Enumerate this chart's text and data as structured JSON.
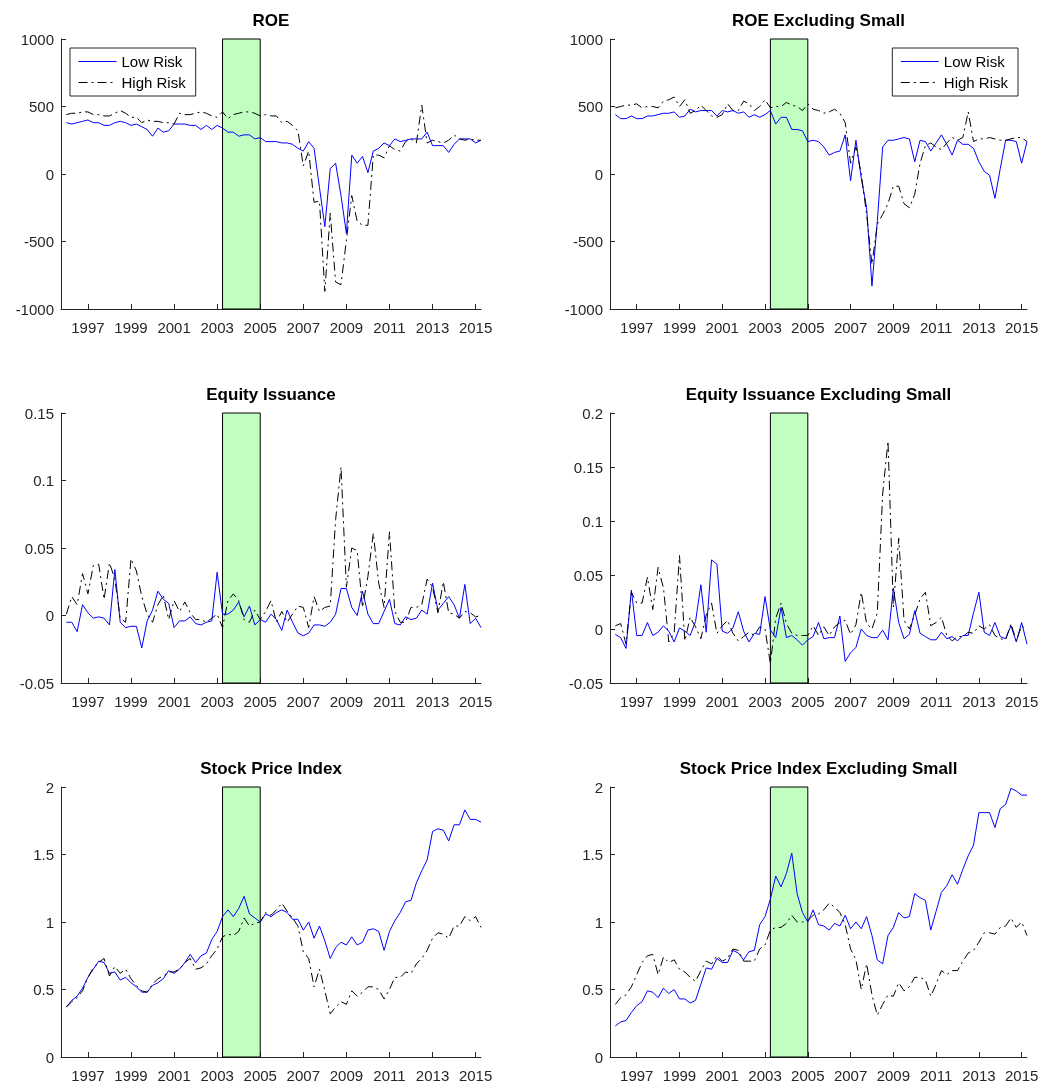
{
  "chart_data": [
    {
      "type": "line",
      "title": "ROE",
      "x": [
        1996,
        1996.25,
        1996.5,
        1996.75,
        1997,
        1997.25,
        1997.5,
        1997.75,
        1998,
        1998.25,
        1998.5,
        1998.75,
        1999,
        1999.25,
        1999.5,
        1999.75,
        2000,
        2000.25,
        2000.5,
        2000.75,
        2001,
        2001.25,
        2001.5,
        2001.75,
        2002,
        2002.25,
        2002.5,
        2002.75,
        2003,
        2003.25,
        2003.5,
        2003.75,
        2004,
        2004.25,
        2004.5,
        2004.75,
        2005,
        2005.25,
        2005.5,
        2005.75,
        2006,
        2006.25,
        2006.5,
        2006.75,
        2007,
        2007.25,
        2007.5,
        2007.75,
        2008,
        2008.25,
        2008.5,
        2008.75,
        2009,
        2009.25,
        2009.5,
        2009.75,
        2010,
        2010.25,
        2010.5,
        2010.75,
        2011,
        2011.25,
        2011.5,
        2011.75,
        2012,
        2012.25,
        2012.5,
        2012.75,
        2013,
        2013.25,
        2013.5,
        2013.75,
        2014,
        2014.25,
        2014.5,
        2014.75,
        2015,
        2015.25
      ],
      "xlim": [
        1995.75,
        2015.25
      ],
      "xticks": [
        1997,
        1999,
        2001,
        2003,
        2005,
        2007,
        2009,
        2011,
        2013,
        2015
      ],
      "ylim": [
        -1000,
        1000
      ],
      "yticks": [
        -1000,
        -500,
        0,
        500,
        1000
      ],
      "legend": "top left",
      "bands": [
        {
          "axis": "x",
          "from": 2003.25,
          "to": 2005,
          "color": "#c0ffc0"
        }
      ],
      "series": [
        {
          "name": "Low Risk",
          "color": "#0000ff",
          "line_style": "solid",
          "values": [
            380,
            370,
            380,
            390,
            400,
            380,
            380,
            360,
            360,
            380,
            390,
            380,
            360,
            370,
            350,
            330,
            280,
            340,
            310,
            320,
            370,
            370,
            370,
            360,
            360,
            330,
            360,
            330,
            360,
            340,
            310,
            310,
            280,
            290,
            290,
            260,
            270,
            240,
            240,
            240,
            230,
            230,
            220,
            190,
            170,
            240,
            190,
            -100,
            -390,
            40,
            80,
            -160,
            -440,
            140,
            80,
            130,
            10,
            170,
            190,
            230,
            210,
            260,
            240,
            250,
            260,
            260,
            260,
            310,
            210,
            210,
            210,
            160,
            220,
            260,
            260,
            260,
            230,
            250
          ]
        },
        {
          "name": "High Risk",
          "color": "#000000",
          "line_style": "dashed",
          "values": [
            440,
            450,
            450,
            460,
            460,
            440,
            440,
            430,
            430,
            450,
            470,
            450,
            420,
            420,
            380,
            400,
            390,
            390,
            380,
            380,
            370,
            450,
            440,
            440,
            450,
            460,
            450,
            430,
            420,
            460,
            410,
            440,
            450,
            460,
            460,
            450,
            430,
            440,
            430,
            430,
            380,
            390,
            360,
            320,
            60,
            170,
            -210,
            -200,
            -870,
            -290,
            -800,
            -820,
            -490,
            -160,
            -350,
            -380,
            -380,
            140,
            140,
            120,
            210,
            180,
            170,
            240,
            260,
            230,
            510,
            230,
            250,
            240,
            230,
            250,
            290,
            260,
            250,
            260,
            250,
            250
          ]
        }
      ]
    },
    {
      "type": "line",
      "title": "ROE Excluding Small",
      "x": [
        1996,
        1996.25,
        1996.5,
        1996.75,
        1997,
        1997.25,
        1997.5,
        1997.75,
        1998,
        1998.25,
        1998.5,
        1998.75,
        1999,
        1999.25,
        1999.5,
        1999.75,
        2000,
        2000.25,
        2000.5,
        2000.75,
        2001,
        2001.25,
        2001.5,
        2001.75,
        2002,
        2002.25,
        2002.5,
        2002.75,
        2003,
        2003.25,
        2003.5,
        2003.75,
        2004,
        2004.25,
        2004.5,
        2004.75,
        2005,
        2005.25,
        2005.5,
        2005.75,
        2006,
        2006.25,
        2006.5,
        2006.75,
        2007,
        2007.25,
        2007.5,
        2007.75,
        2008,
        2008.25,
        2008.5,
        2008.75,
        2009,
        2009.25,
        2009.5,
        2009.75,
        2010,
        2010.25,
        2010.5,
        2010.75,
        2011,
        2011.25,
        2011.5,
        2011.75,
        2012,
        2012.25,
        2012.5,
        2012.75,
        2013,
        2013.25,
        2013.5,
        2013.75,
        2014,
        2014.25,
        2014.5,
        2014.75,
        2015,
        2015.25
      ],
      "xlim": [
        1995.75,
        2015.25
      ],
      "xticks": [
        1997,
        1999,
        2001,
        2003,
        2005,
        2007,
        2009,
        2011,
        2013,
        2015
      ],
      "ylim": [
        -1000,
        1000
      ],
      "yticks": [
        -1000,
        -500,
        0,
        500,
        1000
      ],
      "legend": "top right",
      "bands": [
        {
          "axis": "x",
          "from": 2003.25,
          "to": 2005,
          "color": "#c0ffc0"
        }
      ],
      "series": [
        {
          "name": "Low Risk",
          "color": "#0000ff",
          "line_style": "solid",
          "values": [
            440,
            410,
            410,
            430,
            410,
            410,
            430,
            430,
            440,
            450,
            450,
            460,
            420,
            430,
            480,
            460,
            470,
            470,
            470,
            430,
            470,
            460,
            470,
            450,
            460,
            420,
            440,
            420,
            440,
            470,
            370,
            420,
            420,
            330,
            330,
            320,
            240,
            250,
            240,
            200,
            140,
            160,
            170,
            290,
            -50,
            250,
            -30,
            -250,
            -830,
            -350,
            200,
            250,
            250,
            260,
            270,
            260,
            90,
            250,
            240,
            170,
            230,
            290,
            220,
            140,
            250,
            220,
            220,
            190,
            90,
            20,
            -10,
            -180,
            40,
            250,
            250,
            240,
            80,
            240
          ]
        },
        {
          "name": "High Risk",
          "color": "#000000",
          "line_style": "dashed",
          "values": [
            490,
            500,
            510,
            510,
            520,
            490,
            500,
            500,
            490,
            540,
            550,
            570,
            500,
            550,
            450,
            470,
            510,
            470,
            430,
            420,
            440,
            520,
            470,
            470,
            540,
            520,
            470,
            500,
            550,
            490,
            500,
            500,
            530,
            510,
            500,
            470,
            520,
            480,
            470,
            450,
            460,
            480,
            450,
            380,
            80,
            200,
            0,
            -300,
            -670,
            -370,
            -300,
            -220,
            -90,
            -90,
            -220,
            -250,
            -150,
            80,
            210,
            230,
            200,
            180,
            230,
            270,
            250,
            270,
            460,
            240,
            260,
            260,
            270,
            260,
            250,
            250,
            260,
            270,
            270,
            240
          ]
        }
      ]
    },
    {
      "type": "line",
      "title": "Equity Issuance",
      "x": [
        1996,
        1996.25,
        1996.5,
        1996.75,
        1997,
        1997.25,
        1997.5,
        1997.75,
        1998,
        1998.25,
        1998.5,
        1998.75,
        1999,
        1999.25,
        1999.5,
        1999.75,
        2000,
        2000.25,
        2000.5,
        2000.75,
        2001,
        2001.25,
        2001.5,
        2001.75,
        2002,
        2002.25,
        2002.5,
        2002.75,
        2003,
        2003.25,
        2003.5,
        2003.75,
        2004,
        2004.25,
        2004.5,
        2004.75,
        2005,
        2005.25,
        2005.5,
        2005.75,
        2006,
        2006.25,
        2006.5,
        2006.75,
        2007,
        2007.25,
        2007.5,
        2007.75,
        2008,
        2008.25,
        2008.5,
        2008.75,
        2009,
        2009.25,
        2009.5,
        2009.75,
        2010,
        2010.25,
        2010.5,
        2010.75,
        2011,
        2011.25,
        2011.5,
        2011.75,
        2012,
        2012.25,
        2012.5,
        2012.75,
        2013,
        2013.25,
        2013.5,
        2013.75,
        2014,
        2014.25,
        2014.5,
        2014.75,
        2015,
        2015.25
      ],
      "xlim": [
        1995.75,
        2015.25
      ],
      "xticks": [
        1997,
        1999,
        2001,
        2003,
        2005,
        2007,
        2009,
        2011,
        2013,
        2015
      ],
      "ylim": [
        -0.05,
        0.15
      ],
      "yticks": [
        -0.05,
        0,
        0.05,
        0.1,
        0.15
      ],
      "bands": [
        {
          "axis": "x",
          "from": 2003.25,
          "to": 2005,
          "color": "#c0ffc0"
        }
      ],
      "series": [
        {
          "color": "#0000ff",
          "line_style": "solid",
          "values": [
            -0.005,
            -0.005,
            -0.012,
            0.008,
            0.002,
            -0.002,
            -0.001,
            -0.002,
            -0.007,
            0.034,
            -0.005,
            -0.009,
            -0.008,
            -0.008,
            -0.024,
            -0.004,
            0.004,
            0.018,
            0.012,
            0.009,
            -0.009,
            -0.004,
            -0.004,
            -0.001,
            -0.006,
            -0.007,
            -0.005,
            -0.004,
            0.032,
            0.001,
            0.001,
            0.004,
            0.01,
            -0.001,
            0.007,
            -0.007,
            -0.003,
            -0.005,
            0.001,
            -0.003,
            -0.011,
            0.004,
            -0.005,
            -0.013,
            -0.015,
            -0.013,
            -0.007,
            -0.007,
            -0.008,
            -0.005,
            0.001,
            0.02,
            0.02,
            0.006,
            0.0,
            0.018,
            0.001,
            -0.006,
            -0.006,
            0.003,
            0.012,
            -0.006,
            -0.007,
            -0.001,
            -0.003,
            -0.002,
            0.004,
            0.001,
            0.024,
            0.004,
            0.009,
            0.014,
            0.008,
            -0.002,
            0.023,
            -0.006,
            -0.002,
            -0.009
          ]
        },
        {
          "color": "#000000",
          "line_style": "dashed",
          "values": [
            0.001,
            0.014,
            0.008,
            0.031,
            0.016,
            0.037,
            0.038,
            0.012,
            0.039,
            0.027,
            -0.002,
            -0.005,
            0.042,
            0.033,
            0.014,
            0.001,
            -0.005,
            0.008,
            0.015,
            -0.003,
            0.011,
            0.003,
            0.01,
            0.002,
            -0.003,
            -0.003,
            -0.005,
            -0.002,
            0.001,
            -0.009,
            0.011,
            0.016,
            0.011,
            -0.003,
            -0.005,
            0.004,
            -0.003,
            0.003,
            0.011,
            -0.005,
            0.003,
            -0.005,
            0.001,
            0.007,
            0.006,
            -0.009,
            0.014,
            0.003,
            0.006,
            0.007,
            0.071,
            0.11,
            0.021,
            0.05,
            0.048,
            0.006,
            0.029,
            0.061,
            0.024,
            0.006,
            0.062,
            0.003,
            -0.005,
            -0.005,
            0.006,
            0.006,
            0.008,
            0.027,
            0.021,
            0.002,
            0.025,
            0.002,
            0.001,
            -0.002,
            0.003,
            0.002,
            -0.001,
            0.0
          ]
        }
      ]
    },
    {
      "type": "line",
      "title": "Equity Issuance Excluding Small",
      "x": [
        1996,
        1996.25,
        1996.5,
        1996.75,
        1997,
        1997.25,
        1997.5,
        1997.75,
        1998,
        1998.25,
        1998.5,
        1998.75,
        1999,
        1999.25,
        1999.5,
        1999.75,
        2000,
        2000.25,
        2000.5,
        2000.75,
        2001,
        2001.25,
        2001.5,
        2001.75,
        2002,
        2002.25,
        2002.5,
        2002.75,
        2003,
        2003.25,
        2003.5,
        2003.75,
        2004,
        2004.25,
        2004.5,
        2004.75,
        2005,
        2005.25,
        2005.5,
        2005.75,
        2006,
        2006.25,
        2006.5,
        2006.75,
        2007,
        2007.25,
        2007.5,
        2007.75,
        2008,
        2008.25,
        2008.5,
        2008.75,
        2009,
        2009.25,
        2009.5,
        2009.75,
        2010,
        2010.25,
        2010.5,
        2010.75,
        2011,
        2011.25,
        2011.5,
        2011.75,
        2012,
        2012.25,
        2012.5,
        2012.75,
        2013,
        2013.25,
        2013.5,
        2013.75,
        2014,
        2014.25,
        2014.5,
        2014.75,
        2015,
        2015.25
      ],
      "xlim": [
        1995.75,
        2015.25
      ],
      "xticks": [
        1997,
        1999,
        2001,
        2003,
        2005,
        2007,
        2009,
        2011,
        2013,
        2015
      ],
      "ylim": [
        -0.05,
        0.2
      ],
      "yticks": [
        -0.05,
        0,
        0.05,
        0.1,
        0.15,
        0.2
      ],
      "bands": [
        {
          "axis": "x",
          "from": 2003.25,
          "to": 2005,
          "color": "#c0ffc0"
        }
      ],
      "series": [
        {
          "color": "#0000ff",
          "line_style": "solid",
          "values": [
            -0.005,
            -0.008,
            -0.018,
            0.036,
            -0.006,
            -0.006,
            0.006,
            -0.006,
            -0.003,
            0.003,
            -0.002,
            -0.012,
            0.001,
            -0.002,
            -0.006,
            0.007,
            0.041,
            -0.003,
            0.064,
            0.06,
            -0.002,
            -0.004,
            0.001,
            0.016,
            -0.002,
            -0.012,
            -0.004,
            -0.005,
            0.03,
            -0.001,
            -0.008,
            0.02,
            -0.008,
            -0.006,
            -0.01,
            -0.015,
            -0.01,
            -0.007,
            0.006,
            -0.009,
            -0.008,
            -0.008,
            0.012,
            -0.03,
            -0.022,
            -0.017,
            0.0,
            -0.006,
            -0.008,
            -0.008,
            -0.001,
            -0.01,
            0.038,
            0.006,
            -0.009,
            -0.005,
            0.017,
            -0.004,
            -0.007,
            -0.01,
            -0.01,
            -0.003,
            -0.009,
            -0.007,
            -0.011,
            -0.006,
            -0.006,
            0.015,
            0.034,
            -0.003,
            -0.006,
            0.006,
            -0.007,
            -0.009,
            0.003,
            -0.012,
            0.006,
            -0.014
          ]
        },
        {
          "color": "#000000",
          "line_style": "dashed",
          "values": [
            0.003,
            0.005,
            -0.014,
            0.034,
            0.024,
            0.024,
            0.048,
            0.018,
            0.057,
            0.038,
            -0.012,
            -0.004,
            0.068,
            -0.011,
            0.011,
            0.002,
            -0.009,
            0.013,
            0.024,
            -0.004,
            0.003,
            0.008,
            -0.004,
            -0.011,
            -0.007,
            -0.003,
            -0.006,
            0.002,
            0.0,
            -0.032,
            0.01,
            0.024,
            0.005,
            -0.004,
            -0.006,
            -0.006,
            -0.006,
            0.003,
            -0.006,
            0.002,
            -0.006,
            0.002,
            0.006,
            0.008,
            -0.005,
            0.004,
            0.034,
            0.005,
            0.0,
            0.015,
            0.125,
            0.174,
            0.02,
            0.084,
            0.008,
            0.0,
            0.013,
            0.028,
            0.034,
            0.003,
            0.006,
            0.011,
            -0.006,
            -0.011,
            -0.007,
            -0.007,
            -0.003,
            -0.004,
            0.003,
            0.0,
            0.004,
            -0.006,
            -0.009,
            -0.01,
            0.005,
            -0.011,
            0.003,
            -0.001
          ]
        }
      ]
    },
    {
      "type": "line",
      "title": "Stock Price Index",
      "x": [
        1996,
        1996.25,
        1996.5,
        1996.75,
        1997,
        1997.25,
        1997.5,
        1997.75,
        1998,
        1998.25,
        1998.5,
        1998.75,
        1999,
        1999.25,
        1999.5,
        1999.75,
        2000,
        2000.25,
        2000.5,
        2000.75,
        2001,
        2001.25,
        2001.5,
        2001.75,
        2002,
        2002.25,
        2002.5,
        2002.75,
        2003,
        2003.25,
        2003.5,
        2003.75,
        2004,
        2004.25,
        2004.5,
        2004.75,
        2005,
        2005.25,
        2005.5,
        2005.75,
        2006,
        2006.25,
        2006.5,
        2006.75,
        2007,
        2007.25,
        2007.5,
        2007.75,
        2008,
        2008.25,
        2008.5,
        2008.75,
        2009,
        2009.25,
        2009.5,
        2009.75,
        2010,
        2010.25,
        2010.5,
        2010.75,
        2011,
        2011.25,
        2011.5,
        2011.75,
        2012,
        2012.25,
        2012.5,
        2012.75,
        2013,
        2013.25,
        2013.5,
        2013.75,
        2014,
        2014.25,
        2014.5,
        2014.75,
        2015,
        2015.25
      ],
      "xlim": [
        1995.75,
        2015.25
      ],
      "xticks": [
        1997,
        1999,
        2001,
        2003,
        2005,
        2007,
        2009,
        2011,
        2013,
        2015
      ],
      "ylim": [
        0,
        2
      ],
      "yticks": [
        0,
        0.5,
        1,
        1.5,
        2
      ],
      "bands": [
        {
          "axis": "x",
          "from": 2003.25,
          "to": 2005,
          "color": "#c0ffc0"
        }
      ],
      "series": [
        {
          "color": "#0000ff",
          "line_style": "solid",
          "values": [
            0.37,
            0.42,
            0.45,
            0.51,
            0.59,
            0.65,
            0.71,
            0.7,
            0.62,
            0.63,
            0.57,
            0.59,
            0.55,
            0.52,
            0.48,
            0.48,
            0.53,
            0.55,
            0.58,
            0.64,
            0.62,
            0.65,
            0.7,
            0.76,
            0.7,
            0.75,
            0.77,
            0.87,
            0.93,
            1.04,
            1.09,
            1.04,
            1.1,
            1.19,
            1.06,
            1.03,
            1.0,
            1.06,
            1.04,
            1.07,
            1.09,
            1.07,
            1.02,
            1.02,
            0.94,
            1.0,
            0.88,
            0.97,
            0.86,
            0.73,
            0.81,
            0.85,
            0.83,
            0.89,
            0.83,
            0.85,
            0.94,
            0.95,
            0.93,
            0.79,
            0.93,
            1.01,
            1.07,
            1.15,
            1.16,
            1.29,
            1.38,
            1.46,
            1.67,
            1.69,
            1.68,
            1.6,
            1.72,
            1.72,
            1.83,
            1.76,
            1.76,
            1.74
          ]
        },
        {
          "color": "#000000",
          "line_style": "dashed",
          "values": [
            0.37,
            0.41,
            0.44,
            0.49,
            0.59,
            0.66,
            0.7,
            0.73,
            0.6,
            0.67,
            0.62,
            0.65,
            0.58,
            0.53,
            0.49,
            0.48,
            0.54,
            0.58,
            0.6,
            0.63,
            0.63,
            0.65,
            0.7,
            0.73,
            0.65,
            0.66,
            0.69,
            0.75,
            0.8,
            0.89,
            0.91,
            0.9,
            0.93,
            1.03,
            0.97,
            0.99,
            1.0,
            1.07,
            1.05,
            1.09,
            1.14,
            1.08,
            1.03,
            0.97,
            0.78,
            0.73,
            0.52,
            0.65,
            0.49,
            0.32,
            0.37,
            0.41,
            0.39,
            0.49,
            0.45,
            0.48,
            0.52,
            0.52,
            0.5,
            0.43,
            0.5,
            0.59,
            0.59,
            0.63,
            0.62,
            0.69,
            0.73,
            0.79,
            0.88,
            0.92,
            0.91,
            0.88,
            0.97,
            0.97,
            1.04,
            1.01,
            1.04,
            0.96
          ]
        }
      ]
    },
    {
      "type": "line",
      "title": "Stock Price Index Excluding Small",
      "x": [
        1996,
        1996.25,
        1996.5,
        1996.75,
        1997,
        1997.25,
        1997.5,
        1997.75,
        1998,
        1998.25,
        1998.5,
        1998.75,
        1999,
        1999.25,
        1999.5,
        1999.75,
        2000,
        2000.25,
        2000.5,
        2000.75,
        2001,
        2001.25,
        2001.5,
        2001.75,
        2002,
        2002.25,
        2002.5,
        2002.75,
        2003,
        2003.25,
        2003.5,
        2003.75,
        2004,
        2004.25,
        2004.5,
        2004.75,
        2005,
        2005.25,
        2005.5,
        2005.75,
        2006,
        2006.25,
        2006.5,
        2006.75,
        2007,
        2007.25,
        2007.5,
        2007.75,
        2008,
        2008.25,
        2008.5,
        2008.75,
        2009,
        2009.25,
        2009.5,
        2009.75,
        2010,
        2010.25,
        2010.5,
        2010.75,
        2011,
        2011.25,
        2011.5,
        2011.75,
        2012,
        2012.25,
        2012.5,
        2012.75,
        2013,
        2013.25,
        2013.5,
        2013.75,
        2014,
        2014.25,
        2014.5,
        2014.75,
        2015,
        2015.25
      ],
      "xlim": [
        1995.75,
        2015.25
      ],
      "xticks": [
        1997,
        1999,
        2001,
        2003,
        2005,
        2007,
        2009,
        2011,
        2013,
        2015
      ],
      "ylim": [
        0,
        2
      ],
      "yticks": [
        0,
        0.5,
        1,
        1.5,
        2
      ],
      "bands": [
        {
          "axis": "x",
          "from": 2003.25,
          "to": 2005,
          "color": "#c0ffc0"
        }
      ],
      "series": [
        {
          "color": "#0000ff",
          "line_style": "solid",
          "values": [
            0.23,
            0.26,
            0.27,
            0.33,
            0.38,
            0.41,
            0.49,
            0.48,
            0.44,
            0.51,
            0.47,
            0.5,
            0.43,
            0.43,
            0.4,
            0.42,
            0.54,
            0.66,
            0.65,
            0.73,
            0.7,
            0.7,
            0.79,
            0.77,
            0.72,
            0.78,
            0.79,
            0.98,
            1.04,
            1.17,
            1.34,
            1.26,
            1.36,
            1.51,
            1.21,
            1.07,
            1.0,
            1.09,
            0.98,
            0.97,
            0.94,
            0.99,
            0.97,
            1.05,
            0.95,
            1.0,
            0.95,
            1.04,
            0.9,
            0.72,
            0.69,
            0.9,
            0.96,
            1.07,
            1.03,
            1.04,
            1.21,
            1.18,
            1.16,
            0.94,
            1.08,
            1.22,
            1.27,
            1.35,
            1.28,
            1.39,
            1.49,
            1.57,
            1.81,
            1.81,
            1.81,
            1.7,
            1.84,
            1.87,
            1.99,
            1.97,
            1.94,
            1.94
          ]
        },
        {
          "color": "#000000",
          "line_style": "dashed",
          "values": [
            0.39,
            0.44,
            0.46,
            0.52,
            0.61,
            0.7,
            0.75,
            0.76,
            0.61,
            0.74,
            0.7,
            0.72,
            0.65,
            0.63,
            0.59,
            0.56,
            0.64,
            0.71,
            0.69,
            0.75,
            0.71,
            0.73,
            0.8,
            0.79,
            0.71,
            0.71,
            0.71,
            0.8,
            0.83,
            0.94,
            0.96,
            0.96,
            0.99,
            1.05,
            1.0,
            1.0,
            1.01,
            1.05,
            1.06,
            1.09,
            1.14,
            1.11,
            1.07,
            0.98,
            0.8,
            0.72,
            0.5,
            0.69,
            0.46,
            0.31,
            0.39,
            0.46,
            0.45,
            0.55,
            0.49,
            0.52,
            0.59,
            0.59,
            0.57,
            0.45,
            0.54,
            0.64,
            0.61,
            0.64,
            0.64,
            0.71,
            0.77,
            0.79,
            0.85,
            0.92,
            0.92,
            0.91,
            0.96,
            0.97,
            1.03,
            0.96,
            1.0,
            0.9
          ]
        }
      ]
    }
  ]
}
